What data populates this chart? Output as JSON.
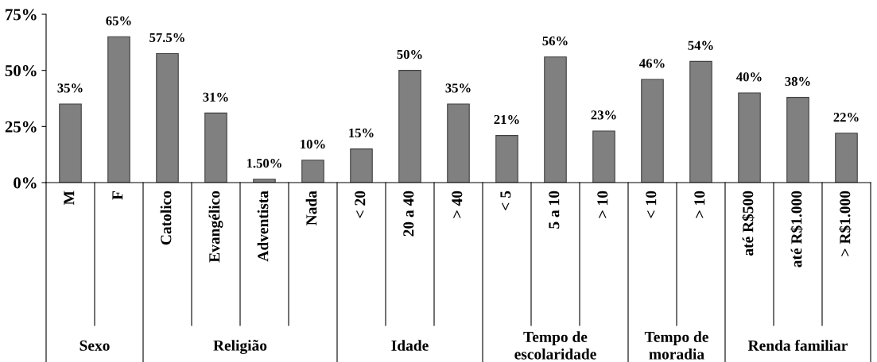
{
  "chart_data": {
    "type": "bar",
    "categories": [
      "M",
      "F",
      "Catolico",
      "Evangélico",
      "Adventista",
      "Nada",
      "< 20",
      "20 a 40",
      "> 40",
      "< 5",
      "5 a 10",
      "> 10",
      "< 10",
      "> 10",
      "até R$500",
      "até R$1.000",
      "> R$1.000"
    ],
    "values": [
      35,
      65,
      57.5,
      31,
      1.5,
      10,
      15,
      50,
      35,
      21,
      56,
      23,
      46,
      54,
      40,
      38,
      22
    ],
    "value_labels": [
      "35%",
      "65%",
      "57.5%",
      "31%",
      "1.50%",
      "10%",
      "15%",
      "50%",
      "35%",
      "21%",
      "56%",
      "23%",
      "46%",
      "54%",
      "40%",
      "38%",
      "22%"
    ],
    "color": "#808080",
    "ylim": [
      0,
      75
    ],
    "yticks": [
      {
        "value": 0,
        "label": "0%"
      },
      {
        "value": 25,
        "label": "25%"
      },
      {
        "value": 50,
        "label": "50%"
      },
      {
        "value": 75,
        "label": "75%"
      }
    ],
    "grid": false,
    "annotations": [
      "Sexo",
      "Religião",
      "Idade",
      "Tempo de\nescolaridade",
      "Tempo de\nmoradia",
      "Renda familiar"
    ]
  }
}
